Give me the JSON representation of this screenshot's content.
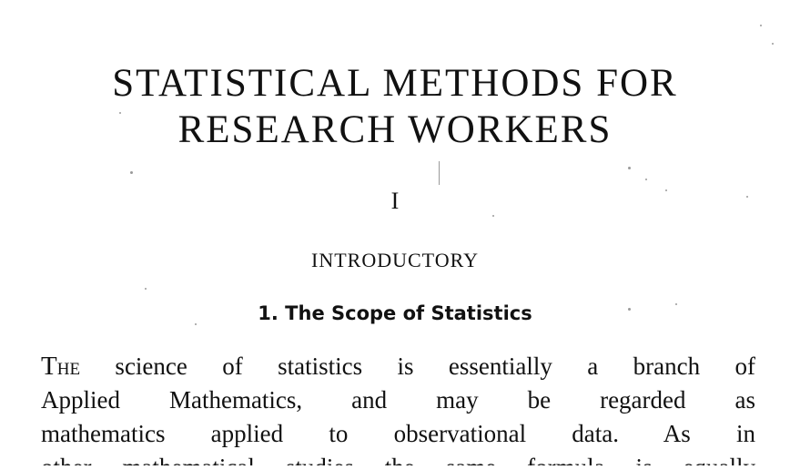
{
  "book": {
    "title_line1": "STATISTICAL METHODS FOR",
    "title_line2": "RESEARCH WORKERS"
  },
  "chapter": {
    "number": "I",
    "title": "INTRODUCTORY"
  },
  "section": {
    "heading": "1. The Scope of Statistics"
  },
  "body": {
    "dropcap": "T",
    "smallcaps": "he",
    "line1_rest": " science of statistics is essentially a branch of",
    "line2": "Applied Mathematics, and may be regarded as",
    "line3": "mathematics applied to observational data. As in",
    "line4_partial": "other mathematical studies the same formula is equally"
  }
}
